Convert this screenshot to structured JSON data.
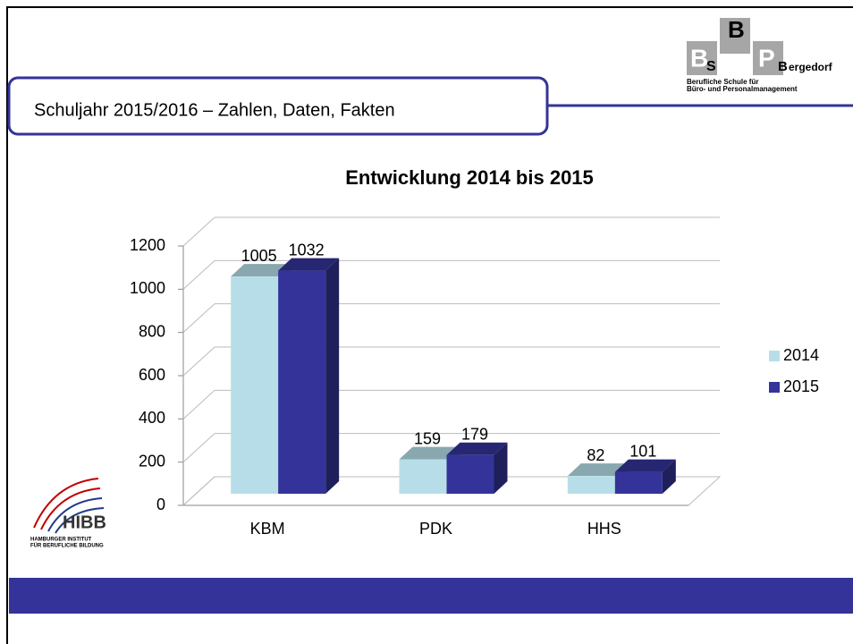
{
  "header": {
    "title": "Schuljahr 2015/2016 – Zahlen, Daten, Fakten"
  },
  "logo": {
    "b1": "B",
    "s": "S",
    "b2": "B",
    "p": "P",
    "b3": "B",
    "rest": "ergedorf",
    "line1": "Berufliche Schule für",
    "line2": "Büro- und Personalmanagement"
  },
  "hibb": {
    "name": "HIBB",
    "line1": "HAMBURGER INSTITUT",
    "line2": "FÜR BERUFLICHE BILDUNG"
  },
  "chart_data": {
    "type": "bar",
    "title": "Entwicklung 2014 bis 2015",
    "categories": [
      "KBM",
      "PDK",
      "HHS"
    ],
    "series": [
      {
        "name": "2014",
        "color": "#b7dee8",
        "values": [
          1005,
          159,
          82
        ]
      },
      {
        "name": "2015",
        "color": "#333399",
        "values": [
          1032,
          179,
          101
        ]
      }
    ],
    "ylim": [
      0,
      1200
    ],
    "yticks": [
      0,
      200,
      400,
      600,
      800,
      1000,
      1200
    ],
    "grid": true,
    "legend": "right"
  }
}
